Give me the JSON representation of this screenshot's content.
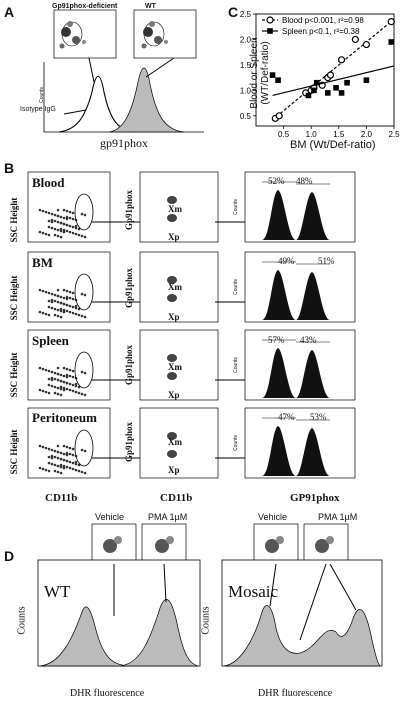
{
  "panels": {
    "A": {
      "label": "A",
      "inset_left_title": "Gp91phox-deficient",
      "inset_right_title": "WT",
      "isotype_label": "Isotype IgG",
      "x_label": "gp91phox",
      "y_label": "Counts"
    },
    "B": {
      "label": "B",
      "rows": [
        {
          "name": "Blood",
          "left_pct": "52%",
          "right_pct": "48%"
        },
        {
          "name": "BM",
          "left_pct": "49%",
          "right_pct": "51%"
        },
        {
          "name": "Spleen",
          "left_pct": "57%",
          "right_pct": "43%"
        },
        {
          "name": "Peritoneum",
          "left_pct": "47%",
          "right_pct": "53%"
        }
      ],
      "y_label_ssc": "SSC Height",
      "y_label_gp91": "Gp91phox",
      "y_label_counts": "Counts",
      "x_label_1": "CD11b",
      "x_label_2": "CD11b",
      "x_label_3": "GP91phox",
      "xm": "Xm",
      "xp": "Xp"
    },
    "D": {
      "label": "D",
      "wt_label": "WT",
      "mosaic_label": "Mosaic",
      "vehicle_label": "Vehicle",
      "pma_label": "PMA 1µM",
      "y_label": "Counts",
      "x_label": "DHR fluorescence"
    }
  },
  "chart_data": {
    "type": "scatter",
    "panel_label": "C",
    "xlabel": "BM (Wt/Def-ratio)",
    "ylabel": "Blood or Spleen (WT/Def-ratio)",
    "xlim": [
      0,
      2.5
    ],
    "ylim": [
      0.3,
      2.5
    ],
    "xticks": [
      "0.5",
      "1.0",
      "1.5",
      "2.0",
      "2.5"
    ],
    "yticks": [
      "0.5",
      "1.0",
      "1.5",
      "2.0",
      "2.5"
    ],
    "legend_position": "top-left",
    "series": [
      {
        "name": "Blood p<0.001, r²=0.98",
        "marker": "open-circle",
        "line": "dashed",
        "x": [
          0.35,
          0.42,
          0.9,
          1.0,
          1.05,
          1.2,
          1.3,
          1.35,
          1.55,
          1.8,
          2.0,
          2.45
        ],
        "y": [
          0.45,
          0.5,
          0.95,
          1.0,
          1.05,
          1.1,
          1.25,
          1.3,
          1.6,
          2.0,
          1.9,
          2.35
        ],
        "fit": [
          [
            0.3,
            0.42
          ],
          [
            2.5,
            2.4
          ]
        ]
      },
      {
        "name": "Spleen p<0.1, r²=0.38",
        "marker": "filled-square",
        "line": "solid",
        "x": [
          0.3,
          0.4,
          0.95,
          1.05,
          1.1,
          1.3,
          1.45,
          1.55,
          1.65,
          2.0,
          2.45
        ],
        "y": [
          1.3,
          1.2,
          0.9,
          1.0,
          1.15,
          0.95,
          1.05,
          0.95,
          1.15,
          1.2,
          1.95
        ],
        "fit": [
          [
            0.3,
            0.9
          ],
          [
            2.5,
            1.48
          ]
        ]
      }
    ]
  }
}
